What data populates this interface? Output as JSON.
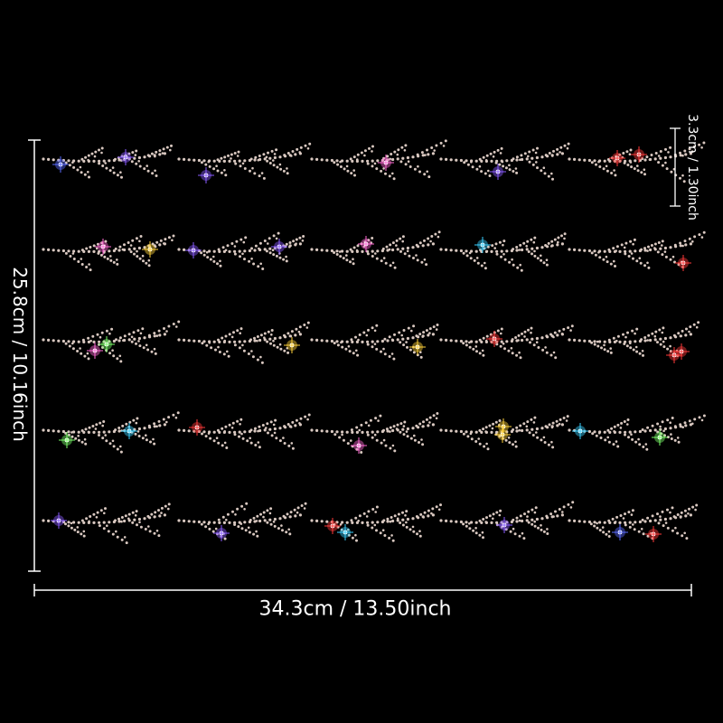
{
  "product_photo": {
    "description_rows": 5,
    "motifs_per_row": 5,
    "dimensions": {
      "total_height": "25.8cm / 10.16inch",
      "total_width": "34.3cm / 13.50inch",
      "motif_height": "3.3cm / 1.30inch"
    },
    "colors": {
      "background": "#000000",
      "rhinestone": "#d9c8c0",
      "dimension_line": "#ffffff",
      "sparkle_accents": [
        "#ffd23a",
        "#5a6bff",
        "#ff3a3a",
        "#8a5cff",
        "#3ad0ff",
        "#ff6ad5",
        "#7dff6a"
      ]
    }
  }
}
